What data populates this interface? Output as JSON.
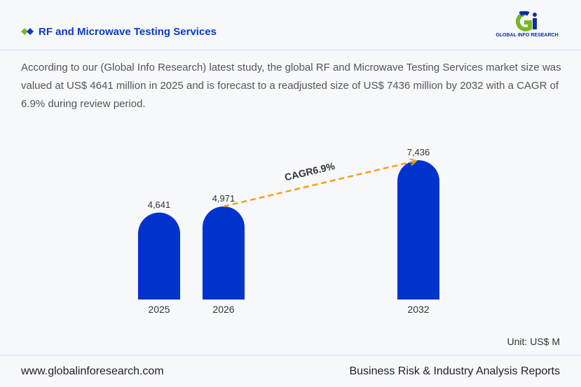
{
  "header": {
    "title": "RF and Microwave Testing Services",
    "logo_text": "GLOBAL INFO RESEARCH"
  },
  "description": "According to our (Global Info Research) latest study, the global RF and Microwave Testing Services market size was valued at US$ 4641 million in 2025 and is forecast to a readjusted size of US$ 7436 million by 2032 with a CAGR of 6.9% during review period.",
  "chart_data": {
    "type": "bar",
    "categories": [
      "2025",
      "2026",
      "2032"
    ],
    "values": [
      4641,
      4971,
      7436
    ],
    "value_labels": [
      "4,641",
      "4,971",
      "7,436"
    ],
    "annotation": "CAGR6.9%",
    "unit": "Unit: US$ M",
    "bar_color": "#0033cc",
    "arrow_color": "#f5a11a",
    "grid": false
  },
  "footer": {
    "website": "www.globalinforesearch.com",
    "tagline": "Business Risk & Industry Analysis Reports"
  }
}
